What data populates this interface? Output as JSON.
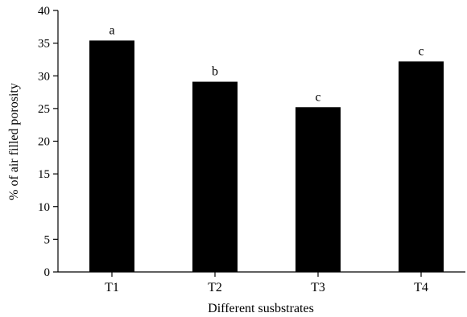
{
  "chart_data": {
    "type": "bar",
    "categories": [
      "T1",
      "T2",
      "T3",
      "T4"
    ],
    "values": [
      35.4,
      29.1,
      25.2,
      32.2
    ],
    "bar_labels": [
      "a",
      "b",
      "c",
      "c"
    ],
    "xlabel": "Different susbstrates",
    "ylabel": "% of air filled porosity",
    "ylim": [
      0,
      40
    ],
    "yticks": [
      0,
      5,
      10,
      15,
      20,
      25,
      30,
      35,
      40
    ],
    "grid": false,
    "bar_color": "#000000"
  }
}
